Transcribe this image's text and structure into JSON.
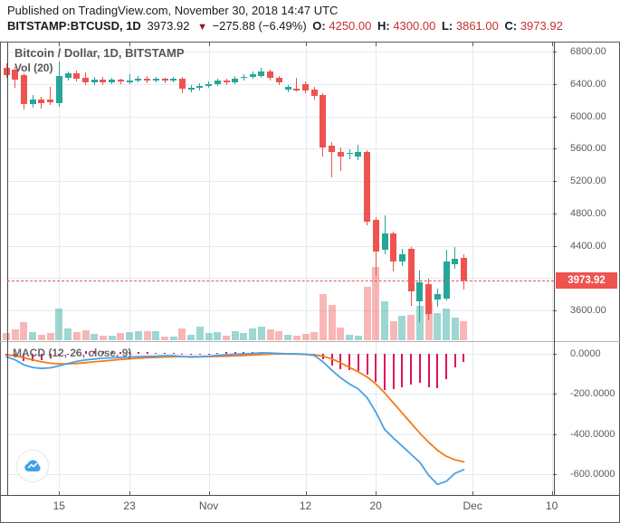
{
  "header": {
    "published_line": "Published on TradingView.com, November 30, 2018 14:47 UTC",
    "symbol": "BITSTAMP:BTCUSD, 1D",
    "last_price": "3973.92",
    "direction_icon": "▼",
    "change": "−275.88 (−6.49%)",
    "open_label": "O:",
    "open": "4250.00",
    "high_label": "H:",
    "high": "4300.00",
    "low_label": "L:",
    "low": "3861.00",
    "close_label": "C:",
    "close": "3973.92"
  },
  "price_pane": {
    "title": "Bitcoin / Dollar, 1D, BITSTAMP",
    "indicator_label": "Vol (20)"
  },
  "macd_pane": {
    "label": "MACD (12, 26, close, 9)"
  },
  "price_scale": {
    "last_price_label": "3973.92",
    "last_price_value": 3973.92,
    "ticks": [
      {
        "label": "6800.00",
        "value": 6800
      },
      {
        "label": "6400.00",
        "value": 6400
      },
      {
        "label": "6000.00",
        "value": 6000
      },
      {
        "label": "5600.00",
        "value": 5600
      },
      {
        "label": "5200.00",
        "value": 5200
      },
      {
        "label": "4800.00",
        "value": 4800
      },
      {
        "label": "4400.00",
        "value": 4400
      },
      {
        "label": "3600.00",
        "value": 3600
      }
    ],
    "gridline_values": [
      6800,
      6400,
      6000,
      5600,
      5200,
      4800,
      4400,
      4000,
      3600
    ]
  },
  "macd_scale": {
    "ticks": [
      {
        "label": "0.0000",
        "value": 0
      },
      {
        "label": "-200.0000",
        "value": -200
      },
      {
        "label": "-400.0000",
        "value": -400
      },
      {
        "label": "-600.0000",
        "value": -600
      }
    ]
  },
  "time_scale": {
    "labels": [
      {
        "label": "15",
        "index": 6
      },
      {
        "label": "23",
        "index": 14
      },
      {
        "label": "Nov",
        "index": 23
      },
      {
        "label": "12",
        "index": 34
      },
      {
        "label": "20",
        "index": 42
      },
      {
        "label": "Dec",
        "index": 53
      },
      {
        "label": "10",
        "index": 62
      }
    ]
  },
  "colors": {
    "up": "#26a69a",
    "down": "#ef5350",
    "up_volume": "rgba(38,166,154,0.45)",
    "down_volume": "rgba(239,83,80,0.42)",
    "macd_line": "#47a2e9",
    "signal_line": "#f57b15",
    "histogram": "#e0105a",
    "grid": "#e3ebf3",
    "ohlc_red": "#c62f2f"
  },
  "chart_data": {
    "type": "candlestick",
    "title": "Bitcoin / Dollar, 1D, BITSTAMP",
    "x_description": "daily candles, 2018-10-09 through 2018-11-30 (last candle = Nov 30 2018)",
    "price_axis_range": [
      3430,
      6930
    ],
    "macd_axis_range": [
      -700,
      60
    ],
    "legend": [
      "Vol (20)",
      "MACD (12, 26, close, 9)"
    ],
    "candles_ohlc": [
      [
        6600,
        6650,
        6480,
        6510
      ],
      [
        6580,
        6610,
        6350,
        6450
      ],
      [
        6510,
        6530,
        6080,
        6150
      ],
      [
        6150,
        6260,
        6110,
        6210
      ],
      [
        6210,
        6240,
        6090,
        6160
      ],
      [
        6210,
        6360,
        6140,
        6170
      ],
      [
        6160,
        6680,
        6120,
        6500
      ],
      [
        6470,
        6560,
        6440,
        6530
      ],
      [
        6530,
        6570,
        6430,
        6460
      ],
      [
        6480,
        6540,
        6390,
        6420
      ],
      [
        6420,
        6490,
        6390,
        6450
      ],
      [
        6450,
        6490,
        6380,
        6420
      ],
      [
        6420,
        6480,
        6400,
        6450
      ],
      [
        6450,
        6470,
        6400,
        6430
      ],
      [
        6430,
        6520,
        6400,
        6440
      ],
      [
        6440,
        6500,
        6420,
        6470
      ],
      [
        6470,
        6500,
        6410,
        6440
      ],
      [
        6440,
        6490,
        6420,
        6460
      ],
      [
        6460,
        6480,
        6410,
        6440
      ],
      [
        6440,
        6490,
        6420,
        6470
      ],
      [
        6470,
        6490,
        6290,
        6340
      ],
      [
        6340,
        6390,
        6300,
        6350
      ],
      [
        6350,
        6410,
        6320,
        6380
      ],
      [
        6380,
        6430,
        6350,
        6400
      ],
      [
        6400,
        6460,
        6380,
        6440
      ],
      [
        6440,
        6460,
        6390,
        6420
      ],
      [
        6420,
        6500,
        6400,
        6470
      ],
      [
        6470,
        6520,
        6440,
        6490
      ],
      [
        6490,
        6550,
        6460,
        6520
      ],
      [
        6500,
        6600,
        6470,
        6560
      ],
      [
        6560,
        6580,
        6440,
        6480
      ],
      [
        6480,
        6500,
        6380,
        6420
      ],
      [
        6330,
        6390,
        6300,
        6360
      ],
      [
        6340,
        6480,
        6310,
        6330
      ],
      [
        6400,
        6430,
        6290,
        6320
      ],
      [
        6330,
        6360,
        6210,
        6250
      ],
      [
        6260,
        6290,
        5500,
        5615
      ],
      [
        5640,
        5680,
        5240,
        5560
      ],
      [
        5560,
        5610,
        5320,
        5500
      ],
      [
        5540,
        5590,
        5470,
        5550
      ],
      [
        5500,
        5650,
        5460,
        5560
      ],
      [
        5560,
        5580,
        4650,
        4700
      ],
      [
        4720,
        4750,
        4030,
        4330
      ],
      [
        4350,
        4780,
        4290,
        4550
      ],
      [
        4550,
        4580,
        4080,
        4200
      ],
      [
        4210,
        4360,
        4150,
        4290
      ],
      [
        4360,
        4380,
        3660,
        3830
      ],
      [
        3710,
        4090,
        3460,
        3950
      ],
      [
        3930,
        3990,
        3480,
        3560
      ],
      [
        3730,
        3870,
        3640,
        3800
      ],
      [
        3750,
        4350,
        3720,
        4210
      ],
      [
        4170,
        4390,
        4120,
        4240
      ],
      [
        4250,
        4300,
        3861,
        3973.92
      ]
    ],
    "volumes_relative": [
      8,
      12,
      20,
      9,
      6,
      8,
      35,
      13,
      9,
      11,
      7,
      5,
      5,
      8,
      9,
      10,
      10,
      10,
      4,
      4,
      13,
      6,
      15,
      8,
      9,
      5,
      10,
      8,
      13,
      15,
      12,
      10,
      6,
      5,
      7,
      9,
      51,
      39,
      14,
      6,
      5,
      59,
      81,
      43,
      21,
      27,
      28,
      38,
      42,
      30,
      35,
      25,
      21
    ],
    "macd": [
      -15,
      -30,
      -55,
      -68,
      -73,
      -70,
      -60,
      -48,
      -38,
      -30,
      -26,
      -22,
      -20,
      -18,
      -16,
      -14,
      -13,
      -12,
      -10,
      -10,
      -14,
      -16,
      -15,
      -12,
      -8,
      -5,
      -2,
      0,
      2,
      5,
      4,
      2,
      0,
      0,
      -2,
      -8,
      -40,
      -82,
      -120,
      -150,
      -175,
      -218,
      -290,
      -377,
      -420,
      -460,
      -500,
      -540,
      -605,
      -650,
      -635,
      -595,
      -577
    ],
    "signal": [
      -5,
      -10,
      -20,
      -30,
      -40,
      -47,
      -50,
      -50,
      -48,
      -44,
      -40,
      -36,
      -32,
      -28,
      -25,
      -22,
      -20,
      -18,
      -16,
      -15,
      -14,
      -14,
      -14,
      -14,
      -13,
      -12,
      -10,
      -8,
      -6,
      -4,
      -2,
      -1,
      -1,
      -2,
      -3,
      -5,
      -12,
      -25,
      -45,
      -68,
      -90,
      -115,
      -150,
      -195,
      -245,
      -295,
      -345,
      -395,
      -440,
      -480,
      -510,
      -528,
      -538
    ],
    "histogram": [
      -10,
      -20,
      -35,
      -38,
      -33,
      -23,
      -10,
      2,
      10,
      14,
      14,
      14,
      12,
      10,
      9,
      8,
      7,
      6,
      6,
      5,
      0,
      -2,
      -1,
      2,
      5,
      7,
      8,
      8,
      8,
      9,
      6,
      3,
      1,
      2,
      1,
      -3,
      -28,
      -57,
      -75,
      -82,
      -85,
      -103,
      -140,
      -182,
      -175,
      -165,
      -155,
      -145,
      -165,
      -170,
      -125,
      -67,
      -39
    ]
  },
  "branding": {
    "logo": "tradingview-cloud-logo"
  }
}
